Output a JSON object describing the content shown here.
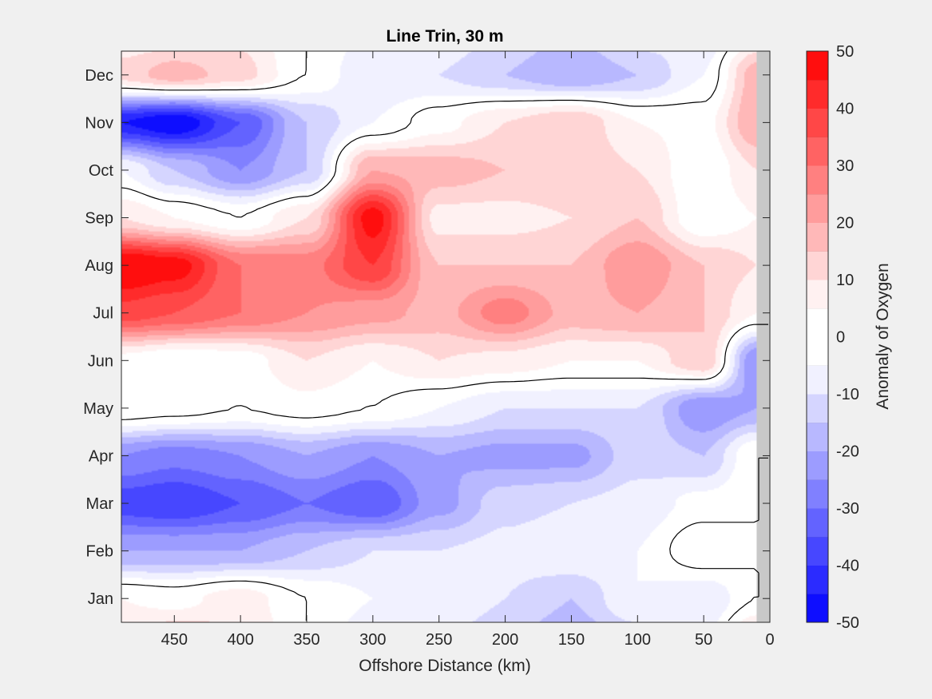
{
  "chart_data": {
    "type": "heatmap",
    "subtype": "filled-contour",
    "title": "Line Trin, 30 m",
    "xlabel": "Offshore Distance (km)",
    "ylabel": "",
    "colorbar_label": "Anomaly of Oxygen",
    "x_direction": "reversed",
    "xlim": [
      0,
      490
    ],
    "x_ticks": [
      450,
      400,
      350,
      300,
      250,
      200,
      150,
      100,
      50,
      0
    ],
    "y_ticks": [
      "Jan",
      "Feb",
      "Mar",
      "Apr",
      "May",
      "Jun",
      "Jul",
      "Aug",
      "Sep",
      "Oct",
      "Nov",
      "Dec"
    ],
    "colorbar_ticks": [
      50,
      40,
      30,
      20,
      10,
      0,
      -10,
      -20,
      -30,
      -40,
      -50
    ],
    "clim": [
      -50,
      50
    ],
    "contour_levels": [
      -50,
      -45,
      -40,
      -35,
      -30,
      -25,
      -20,
      -15,
      -10,
      -5,
      0,
      5,
      10,
      15,
      20,
      25,
      30,
      35,
      40,
      45,
      50
    ],
    "zero_contour_line": true,
    "no_data_band_km": [
      0,
      10
    ],
    "colormap": {
      "negative_extreme": "#0000ff",
      "zero": "#ffffff",
      "positive_extreme": "#ff0000",
      "no_data": "#c8c8c8"
    },
    "x_grid_km": [
      490,
      450,
      400,
      350,
      300,
      250,
      200,
      150,
      100,
      50,
      10
    ],
    "rows": [
      {
        "month": "Jan",
        "values": [
          5,
          3,
          8,
          0,
          -5,
          -5,
          -10,
          -15,
          -5,
          -10,
          0
        ]
      },
      {
        "month": "Feb",
        "values": [
          -20,
          -20,
          -20,
          -15,
          -10,
          -10,
          -8,
          -5,
          -5,
          5,
          0
        ]
      },
      {
        "month": "Mar",
        "values": [
          -38,
          -40,
          -35,
          -30,
          -35,
          -22,
          -12,
          -10,
          -8,
          -3,
          0
        ]
      },
      {
        "month": "Apr",
        "values": [
          -25,
          -28,
          -25,
          -20,
          -25,
          -20,
          -22,
          -22,
          -12,
          -15,
          0
        ]
      },
      {
        "month": "May",
        "values": [
          5,
          3,
          0,
          3,
          0,
          -5,
          -10,
          -10,
          -10,
          -25,
          -20
        ]
      },
      {
        "month": "Jun",
        "values": [
          3,
          0,
          2,
          10,
          5,
          10,
          8,
          5,
          5,
          15,
          -25
        ]
      },
      {
        "month": "Jul",
        "values": [
          38,
          35,
          30,
          25,
          22,
          18,
          28,
          18,
          20,
          15,
          5
        ]
      },
      {
        "month": "Aug",
        "values": [
          52,
          48,
          30,
          28,
          40,
          15,
          15,
          15,
          25,
          15,
          10
        ]
      },
      {
        "month": "Sep",
        "values": [
          10,
          5,
          0,
          10,
          48,
          8,
          8,
          10,
          15,
          0,
          5
        ]
      },
      {
        "month": "Oct",
        "values": [
          -5,
          -15,
          -25,
          -15,
          20,
          18,
          15,
          15,
          10,
          0,
          10
        ]
      },
      {
        "month": "Nov",
        "values": [
          -45,
          -50,
          -35,
          -15,
          -5,
          3,
          10,
          15,
          5,
          3,
          20
        ]
      },
      {
        "month": "Dec",
        "values": [
          12,
          18,
          12,
          0,
          -10,
          -10,
          -15,
          -20,
          -15,
          -5,
          18
        ]
      }
    ]
  }
}
